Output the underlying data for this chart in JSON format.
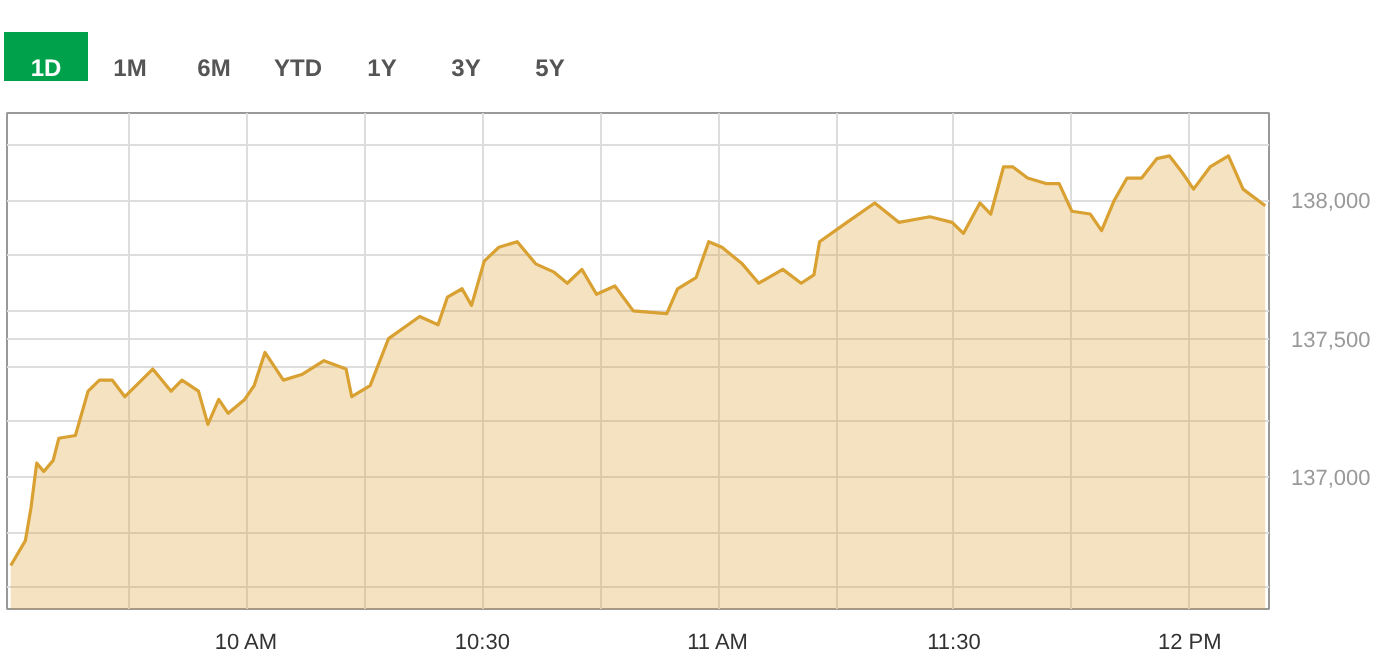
{
  "chart_data": {
    "type": "area",
    "annotations": [
      "1D",
      "1M",
      "6M",
      "YTD",
      "1Y",
      "3Y",
      "5Y"
    ],
    "x": [
      9.5,
      9.531,
      9.543,
      9.555,
      9.57,
      9.59,
      9.602,
      9.637,
      9.664,
      9.688,
      9.715,
      9.742,
      9.801,
      9.84,
      9.863,
      9.898,
      9.918,
      9.941,
      9.961,
      9.996,
      10.016,
      10.039,
      10.078,
      10.117,
      10.164,
      10.211,
      10.223,
      10.262,
      10.301,
      10.367,
      10.406,
      10.426,
      10.457,
      10.477,
      10.504,
      10.535,
      10.574,
      10.613,
      10.652,
      10.68,
      10.711,
      10.742,
      10.781,
      10.82,
      10.891,
      10.914,
      10.953,
      10.98,
      11.008,
      11.051,
      11.086,
      11.137,
      11.176,
      11.203,
      11.215,
      11.273,
      11.332,
      11.383,
      11.449,
      11.496,
      11.52,
      11.555,
      11.578,
      11.605,
      11.625,
      11.656,
      11.695,
      11.723,
      11.75,
      11.789,
      11.813,
      11.84,
      11.867,
      11.898,
      11.93,
      11.957,
      11.984,
      12.008,
      12.043,
      12.082,
      12.113,
      12.16
    ],
    "series": [
      {
        "color": "#d9a032",
        "values": [
          136680,
          136770,
          136890,
          137050,
          137020,
          137060,
          137140,
          137150,
          137310,
          137350,
          137350,
          137290,
          137390,
          137310,
          137350,
          137310,
          137190,
          137280,
          137230,
          137280,
          137330,
          137450,
          137350,
          137370,
          137420,
          137390,
          137290,
          137330,
          137500,
          137580,
          137550,
          137650,
          137680,
          137620,
          137780,
          137830,
          137850,
          137770,
          137740,
          137700,
          137750,
          137660,
          137690,
          137600,
          137590,
          137680,
          137720,
          137850,
          137830,
          137770,
          137700,
          137750,
          137700,
          137730,
          137850,
          137920,
          137990,
          137920,
          137940,
          137920,
          137880,
          137990,
          137950,
          138120,
          138120,
          138080,
          138060,
          138060,
          137960,
          137950,
          137890,
          138000,
          138080,
          138080,
          138150,
          138160,
          138100,
          138040,
          138120,
          138160,
          138040,
          137980
        ]
      }
    ],
    "xlim": [
      9.492,
      12.168
    ],
    "xticks": [
      {
        "value": 9.75,
        "label": null
      },
      {
        "value": 10,
        "label": "10 AM"
      },
      {
        "value": 10.25,
        "label": null
      },
      {
        "value": 10.5,
        "label": "10:30"
      },
      {
        "value": 10.75,
        "label": null
      },
      {
        "value": 11,
        "label": "11 AM"
      },
      {
        "value": 11.25,
        "label": null
      },
      {
        "value": 11.5,
        "label": "11:30"
      },
      {
        "value": 11.75,
        "label": null
      },
      {
        "value": 12,
        "label": "12 PM"
      }
    ],
    "ylim": [
      136523,
      138315
    ],
    "yticks": [
      {
        "value": 136600,
        "label": null
      },
      {
        "value": 136800,
        "label": null
      },
      {
        "value": 137000,
        "label": "137,000"
      },
      {
        "value": 137200,
        "label": null
      },
      {
        "value": 137400,
        "label": null
      },
      {
        "value": 137500,
        "label": "137,500"
      },
      {
        "value": 137600,
        "label": null
      },
      {
        "value": 137800,
        "label": null
      },
      {
        "value": 138000,
        "label": "138,000"
      },
      {
        "value": 138200,
        "label": null
      }
    ],
    "grid": true
  }
}
